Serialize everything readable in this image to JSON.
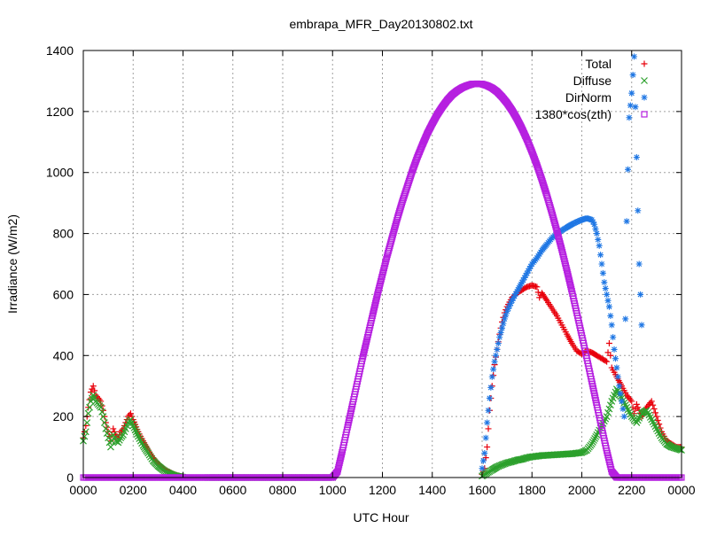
{
  "chart_data": {
    "type": "scatter",
    "title": "embrapa_MFR_Day20130802.txt",
    "xlabel": "UTC Hour",
    "ylabel": "Irradiance (W/m2)",
    "xlim": [
      0,
      24
    ],
    "ylim": [
      0,
      1400
    ],
    "grid": true,
    "legend_position": "top-right",
    "x_ticks": [
      {
        "value": 0,
        "label": "0000"
      },
      {
        "value": 2,
        "label": "0200"
      },
      {
        "value": 4,
        "label": "0400"
      },
      {
        "value": 6,
        "label": "0600"
      },
      {
        "value": 8,
        "label": "0800"
      },
      {
        "value": 10,
        "label": "1000"
      },
      {
        "value": 12,
        "label": "1200"
      },
      {
        "value": 14,
        "label": "1400"
      },
      {
        "value": 16,
        "label": "1600"
      },
      {
        "value": 18,
        "label": "1800"
      },
      {
        "value": 20,
        "label": "2000"
      },
      {
        "value": 22,
        "label": "2200"
      },
      {
        "value": 24,
        "label": "0000"
      }
    ],
    "y_ticks": [
      0,
      200,
      400,
      600,
      800,
      1000,
      1200,
      1400
    ],
    "series": [
      {
        "name": "Total",
        "marker": "plus",
        "color": "#e8000b",
        "points": [
          [
            0.0,
            130
          ],
          [
            0.1,
            170
          ],
          [
            0.2,
            230
          ],
          [
            0.3,
            280
          ],
          [
            0.4,
            300
          ],
          [
            0.5,
            270
          ],
          [
            0.6,
            260
          ],
          [
            0.7,
            250
          ],
          [
            0.8,
            220
          ],
          [
            0.9,
            180
          ],
          [
            1.0,
            150
          ],
          [
            1.1,
            120
          ],
          [
            1.2,
            160
          ],
          [
            1.3,
            140
          ],
          [
            1.4,
            130
          ],
          [
            1.5,
            150
          ],
          [
            1.6,
            160
          ],
          [
            1.7,
            180
          ],
          [
            1.8,
            200
          ],
          [
            1.9,
            210
          ],
          [
            2.0,
            190
          ],
          [
            2.2,
            150
          ],
          [
            2.4,
            120
          ],
          [
            2.6,
            90
          ],
          [
            2.8,
            65
          ],
          [
            3.0,
            45
          ],
          [
            3.2,
            30
          ],
          [
            3.4,
            20
          ],
          [
            3.6,
            12
          ],
          [
            3.8,
            6
          ],
          [
            4.0,
            2
          ],
          [
            5.0,
            0
          ],
          [
            7.0,
            0
          ],
          [
            9.0,
            0
          ],
          [
            10.0,
            0
          ],
          [
            16.0,
            10
          ],
          [
            16.1,
            30
          ],
          [
            16.2,
            100
          ],
          [
            16.3,
            220
          ],
          [
            16.4,
            300
          ],
          [
            16.5,
            370
          ],
          [
            16.6,
            420
          ],
          [
            16.7,
            470
          ],
          [
            16.8,
            510
          ],
          [
            16.9,
            540
          ],
          [
            17.0,
            560
          ],
          [
            17.1,
            575
          ],
          [
            17.2,
            590
          ],
          [
            17.4,
            605
          ],
          [
            17.6,
            615
          ],
          [
            17.8,
            625
          ],
          [
            18.0,
            630
          ],
          [
            18.2,
            625
          ],
          [
            18.3,
            590
          ],
          [
            18.4,
            605
          ],
          [
            18.6,
            580
          ],
          [
            18.8,
            555
          ],
          [
            19.0,
            530
          ],
          [
            19.2,
            500
          ],
          [
            19.4,
            470
          ],
          [
            19.6,
            440
          ],
          [
            19.8,
            415
          ],
          [
            20.0,
            405
          ],
          [
            20.2,
            415
          ],
          [
            20.4,
            410
          ],
          [
            20.6,
            400
          ],
          [
            20.8,
            390
          ],
          [
            21.0,
            380
          ],
          [
            21.1,
            440
          ],
          [
            21.2,
            360
          ],
          [
            21.4,
            330
          ],
          [
            21.6,
            300
          ],
          [
            21.8,
            270
          ],
          [
            22.0,
            250
          ],
          [
            22.1,
            210
          ],
          [
            22.2,
            240
          ],
          [
            22.4,
            200
          ],
          [
            22.6,
            230
          ],
          [
            22.8,
            250
          ],
          [
            23.0,
            200
          ],
          [
            23.2,
            150
          ],
          [
            23.4,
            120
          ],
          [
            23.6,
            110
          ],
          [
            23.8,
            100
          ],
          [
            24.0,
            100
          ]
        ]
      },
      {
        "name": "Diffuse",
        "marker": "cross",
        "color": "#2ca02c",
        "points": [
          [
            0.0,
            120
          ],
          [
            0.1,
            150
          ],
          [
            0.2,
            210
          ],
          [
            0.3,
            250
          ],
          [
            0.4,
            270
          ],
          [
            0.5,
            250
          ],
          [
            0.6,
            240
          ],
          [
            0.7,
            230
          ],
          [
            0.8,
            200
          ],
          [
            0.9,
            160
          ],
          [
            1.0,
            130
          ],
          [
            1.1,
            100
          ],
          [
            1.2,
            140
          ],
          [
            1.3,
            120
          ],
          [
            1.4,
            115
          ],
          [
            1.5,
            130
          ],
          [
            1.6,
            140
          ],
          [
            1.7,
            160
          ],
          [
            1.8,
            180
          ],
          [
            1.9,
            190
          ],
          [
            2.0,
            170
          ],
          [
            2.2,
            135
          ],
          [
            2.4,
            105
          ],
          [
            2.6,
            80
          ],
          [
            2.8,
            55
          ],
          [
            3.0,
            38
          ],
          [
            3.2,
            25
          ],
          [
            3.4,
            15
          ],
          [
            3.6,
            8
          ],
          [
            3.8,
            4
          ],
          [
            4.0,
            1
          ],
          [
            5.0,
            0
          ],
          [
            7.0,
            0
          ],
          [
            9.0,
            0
          ],
          [
            10.0,
            0
          ],
          [
            16.0,
            5
          ],
          [
            16.2,
            15
          ],
          [
            16.4,
            25
          ],
          [
            16.6,
            35
          ],
          [
            16.8,
            42
          ],
          [
            17.0,
            48
          ],
          [
            17.2,
            52
          ],
          [
            17.4,
            57
          ],
          [
            17.6,
            60
          ],
          [
            17.8,
            65
          ],
          [
            18.0,
            68
          ],
          [
            18.2,
            70
          ],
          [
            18.4,
            72
          ],
          [
            18.6,
            73
          ],
          [
            18.8,
            74
          ],
          [
            19.0,
            75
          ],
          [
            19.2,
            76
          ],
          [
            19.4,
            77
          ],
          [
            19.6,
            78
          ],
          [
            19.8,
            80
          ],
          [
            20.0,
            82
          ],
          [
            20.2,
            90
          ],
          [
            20.4,
            110
          ],
          [
            20.6,
            140
          ],
          [
            20.8,
            170
          ],
          [
            21.0,
            200
          ],
          [
            21.2,
            250
          ],
          [
            21.4,
            290
          ],
          [
            21.6,
            260
          ],
          [
            21.8,
            230
          ],
          [
            22.0,
            200
          ],
          [
            22.2,
            180
          ],
          [
            22.4,
            210
          ],
          [
            22.6,
            220
          ],
          [
            22.8,
            190
          ],
          [
            23.0,
            160
          ],
          [
            23.2,
            130
          ],
          [
            23.4,
            110
          ],
          [
            23.6,
            100
          ],
          [
            23.8,
            95
          ],
          [
            24.0,
            90
          ]
        ]
      },
      {
        "name": "DirNorm",
        "marker": "star",
        "color": "#1f77e4",
        "points": [
          [
            16.0,
            30
          ],
          [
            16.1,
            80
          ],
          [
            16.2,
            180
          ],
          [
            16.3,
            260
          ],
          [
            16.4,
            330
          ],
          [
            16.5,
            380
          ],
          [
            16.6,
            420
          ],
          [
            16.7,
            460
          ],
          [
            16.8,
            490
          ],
          [
            16.9,
            520
          ],
          [
            17.0,
            545
          ],
          [
            17.2,
            580
          ],
          [
            17.4,
            610
          ],
          [
            17.6,
            640
          ],
          [
            17.8,
            670
          ],
          [
            18.0,
            700
          ],
          [
            18.2,
            720
          ],
          [
            18.4,
            745
          ],
          [
            18.6,
            765
          ],
          [
            18.8,
            785
          ],
          [
            19.0,
            800
          ],
          [
            19.2,
            810
          ],
          [
            19.4,
            820
          ],
          [
            19.6,
            830
          ],
          [
            19.8,
            838
          ],
          [
            20.0,
            845
          ],
          [
            20.2,
            850
          ],
          [
            20.4,
            845
          ],
          [
            20.5,
            830
          ],
          [
            20.6,
            800
          ],
          [
            20.7,
            760
          ],
          [
            20.8,
            700
          ],
          [
            20.9,
            640
          ],
          [
            21.0,
            600
          ],
          [
            21.1,
            560
          ],
          [
            21.2,
            500
          ],
          [
            21.3,
            420
          ],
          [
            21.4,
            360
          ],
          [
            21.5,
            300
          ],
          [
            21.6,
            250
          ],
          [
            21.7,
            200
          ],
          [
            21.8,
            840
          ],
          [
            21.9,
            1180
          ],
          [
            22.0,
            1260
          ],
          [
            22.1,
            1380
          ],
          [
            22.2,
            1050
          ],
          [
            22.3,
            700
          ],
          [
            22.4,
            500
          ]
        ]
      },
      {
        "name": "1380*cos(zth)",
        "marker": "square",
        "color": "#b620e0",
        "points": [
          [
            0.0,
            0
          ],
          [
            2.0,
            0
          ],
          [
            4.0,
            0
          ],
          [
            6.0,
            0
          ],
          [
            8.0,
            0
          ],
          [
            10.0,
            0
          ],
          [
            10.2,
            20
          ],
          [
            10.4,
            90
          ],
          [
            10.6,
            165
          ],
          [
            10.8,
            240
          ],
          [
            11.0,
            315
          ],
          [
            11.2,
            390
          ],
          [
            11.4,
            460
          ],
          [
            11.6,
            530
          ],
          [
            11.8,
            600
          ],
          [
            12.0,
            665
          ],
          [
            12.2,
            730
          ],
          [
            12.4,
            790
          ],
          [
            12.6,
            850
          ],
          [
            12.8,
            905
          ],
          [
            13.0,
            955
          ],
          [
            13.2,
            1005
          ],
          [
            13.4,
            1050
          ],
          [
            13.6,
            1090
          ],
          [
            13.8,
            1128
          ],
          [
            14.0,
            1160
          ],
          [
            14.2,
            1190
          ],
          [
            14.4,
            1215
          ],
          [
            14.6,
            1237
          ],
          [
            14.8,
            1255
          ],
          [
            15.0,
            1268
          ],
          [
            15.2,
            1278
          ],
          [
            15.4,
            1285
          ],
          [
            15.6,
            1290
          ],
          [
            15.8,
            1291
          ],
          [
            16.0,
            1290
          ],
          [
            16.2,
            1285
          ],
          [
            16.4,
            1277
          ],
          [
            16.6,
            1265
          ],
          [
            16.8,
            1248
          ],
          [
            17.0,
            1228
          ],
          [
            17.2,
            1204
          ],
          [
            17.4,
            1176
          ],
          [
            17.6,
            1144
          ],
          [
            17.8,
            1108
          ],
          [
            18.0,
            1068
          ],
          [
            18.2,
            1024
          ],
          [
            18.4,
            976
          ],
          [
            18.6,
            924
          ],
          [
            18.8,
            868
          ],
          [
            19.0,
            809
          ],
          [
            19.2,
            746
          ],
          [
            19.4,
            680
          ],
          [
            19.6,
            611
          ],
          [
            19.8,
            539
          ],
          [
            20.0,
            466
          ],
          [
            20.2,
            391
          ],
          [
            20.4,
            315
          ],
          [
            20.6,
            238
          ],
          [
            20.8,
            162
          ],
          [
            21.0,
            88
          ],
          [
            21.2,
            20
          ],
          [
            21.4,
            0
          ],
          [
            22.0,
            0
          ],
          [
            23.0,
            0
          ],
          [
            24.0,
            0
          ]
        ]
      }
    ]
  }
}
